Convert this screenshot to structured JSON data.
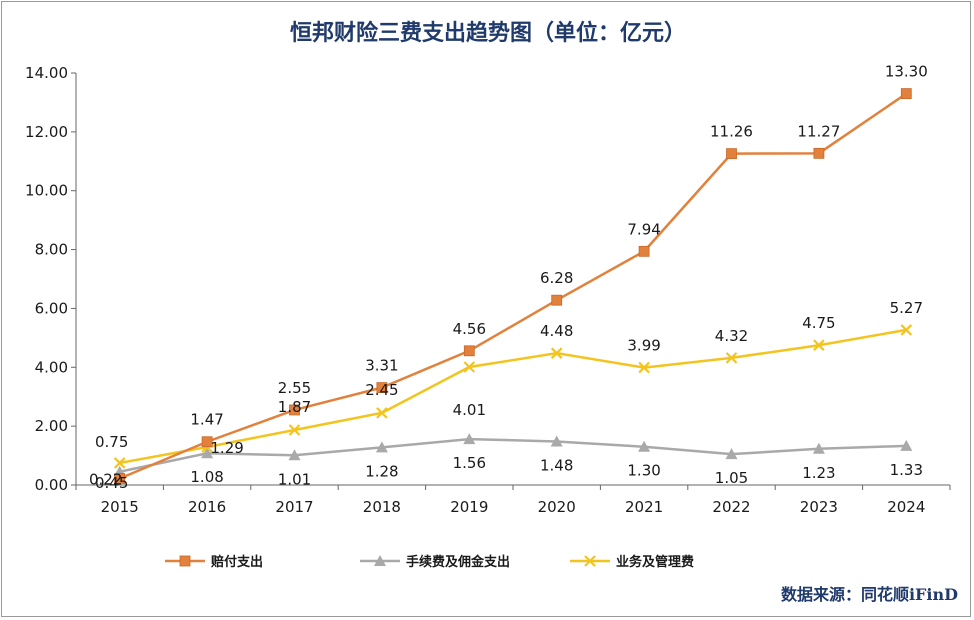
{
  "chart_data": {
    "type": "line",
    "title": "恒邦财险三费支出趋势图（单位：亿元）",
    "xlabel": "",
    "ylabel": "",
    "categories": [
      "2015",
      "2016",
      "2017",
      "2018",
      "2019",
      "2020",
      "2021",
      "2022",
      "2023",
      "2024"
    ],
    "ylim": [
      0,
      14
    ],
    "yticks": [
      "0.00",
      "2.00",
      "4.00",
      "6.00",
      "8.00",
      "10.00",
      "12.00",
      "14.00"
    ],
    "grid": false,
    "legend_position": "bottom",
    "series": [
      {
        "name": "赔付支出",
        "color": "#e2813b",
        "marker": "square",
        "values": [
          0.22,
          1.47,
          2.55,
          3.31,
          4.56,
          6.28,
          7.94,
          11.26,
          11.27,
          13.3
        ],
        "labels": [
          "0.22",
          "1.47",
          "2.55",
          "3.31",
          "4.56",
          "6.28",
          "7.94",
          "11.26",
          "11.27",
          "13.30"
        ]
      },
      {
        "name": "手续费及佣金支出",
        "color": "#a9a9a9",
        "marker": "triangle",
        "values": [
          0.45,
          1.08,
          1.01,
          1.28,
          1.56,
          1.48,
          1.3,
          1.05,
          1.23,
          1.33
        ],
        "labels": [
          "0.45",
          "1.08",
          "1.01",
          "1.28",
          "1.56",
          "1.48",
          "1.30",
          "1.05",
          "1.23",
          "1.33"
        ]
      },
      {
        "name": "业务及管理费",
        "color": "#f4c41e",
        "marker": "x",
        "values": [
          0.75,
          1.29,
          1.87,
          2.45,
          4.01,
          4.48,
          3.99,
          4.32,
          4.75,
          5.27
        ],
        "labels": [
          "0.75",
          "1.29",
          "1.87",
          "2.45",
          "4.01",
          "4.48",
          "3.99",
          "4.32",
          "4.75",
          "5.27"
        ]
      }
    ]
  },
  "source_note": "数据来源：同花顺iFinD"
}
